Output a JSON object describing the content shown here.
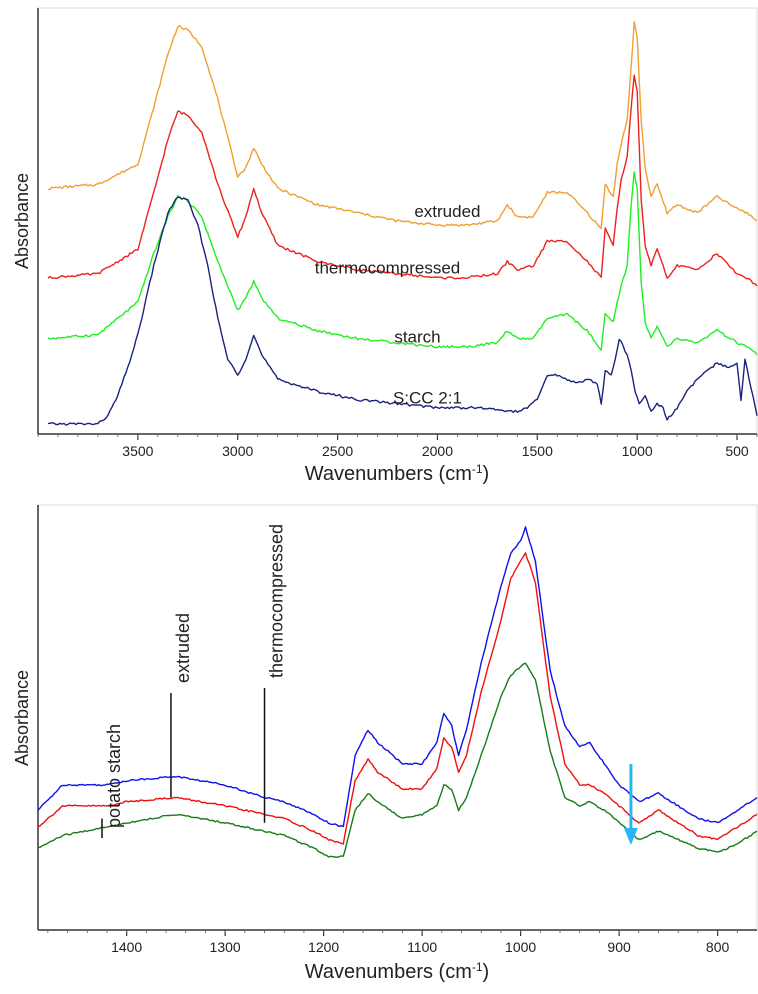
{
  "chart_data": [
    {
      "type": "line",
      "xlabel": "Wavenumbers (cm",
      "xlabel_sup": "-1",
      "xlabel_end": ")",
      "ylabel": "Absorbance",
      "xlim": [
        4000,
        400
      ],
      "x_reversed": true,
      "xticks": [
        3500,
        3000,
        2500,
        2000,
        1500,
        1000,
        500
      ],
      "grid": false,
      "series": [
        {
          "name": "extruded",
          "color": "#f0a030",
          "x": [
            3950,
            3700,
            3500,
            3420,
            3350,
            3300,
            3250,
            3180,
            3100,
            3000,
            2960,
            2920,
            2880,
            2800,
            2600,
            2400,
            2200,
            2000,
            1850,
            1700,
            1650,
            1600,
            1520,
            1450,
            1350,
            1250,
            1180,
            1160,
            1120,
            1100,
            1080,
            1050,
            1030,
            1015,
            1000,
            980,
            960,
            930,
            900,
            850,
            800,
            700,
            600,
            500,
            450,
            400
          ],
          "y": [
            0.59,
            0.6,
            0.65,
            0.79,
            0.92,
            0.99,
            0.98,
            0.94,
            0.81,
            0.62,
            0.64,
            0.69,
            0.65,
            0.59,
            0.55,
            0.53,
            0.51,
            0.5,
            0.5,
            0.51,
            0.55,
            0.52,
            0.52,
            0.58,
            0.58,
            0.53,
            0.49,
            0.6,
            0.57,
            0.65,
            0.7,
            0.76,
            0.89,
            1.0,
            0.96,
            0.76,
            0.64,
            0.57,
            0.6,
            0.53,
            0.55,
            0.53,
            0.57,
            0.54,
            0.53,
            0.51
          ]
        },
        {
          "name": "thermocompressed",
          "color": "#ee2020",
          "x": [
            3950,
            3700,
            3500,
            3420,
            3350,
            3300,
            3250,
            3180,
            3100,
            3000,
            2960,
            2920,
            2880,
            2800,
            2600,
            2400,
            2200,
            2000,
            1850,
            1700,
            1650,
            1600,
            1520,
            1450,
            1350,
            1250,
            1180,
            1160,
            1120,
            1100,
            1080,
            1050,
            1030,
            1015,
            1000,
            980,
            960,
            930,
            900,
            850,
            800,
            700,
            600,
            500,
            450,
            400
          ],
          "y": [
            0.37,
            0.38,
            0.44,
            0.58,
            0.71,
            0.78,
            0.77,
            0.73,
            0.6,
            0.47,
            0.52,
            0.59,
            0.53,
            0.45,
            0.41,
            0.39,
            0.38,
            0.37,
            0.37,
            0.38,
            0.41,
            0.39,
            0.4,
            0.46,
            0.46,
            0.41,
            0.37,
            0.49,
            0.45,
            0.54,
            0.61,
            0.67,
            0.79,
            0.87,
            0.83,
            0.56,
            0.45,
            0.4,
            0.44,
            0.37,
            0.4,
            0.39,
            0.43,
            0.38,
            0.37,
            0.35
          ]
        },
        {
          "name": "starch",
          "color": "#22ee22",
          "x": [
            3950,
            3700,
            3500,
            3420,
            3350,
            3300,
            3250,
            3180,
            3100,
            3000,
            2960,
            2920,
            2880,
            2800,
            2600,
            2400,
            2200,
            2000,
            1850,
            1700,
            1650,
            1600,
            1520,
            1450,
            1350,
            1250,
            1180,
            1160,
            1120,
            1100,
            1080,
            1050,
            1030,
            1015,
            1000,
            980,
            960,
            930,
            900,
            850,
            800,
            700,
            600,
            500,
            450,
            400
          ],
          "y": [
            0.22,
            0.23,
            0.31,
            0.43,
            0.52,
            0.57,
            0.56,
            0.52,
            0.41,
            0.29,
            0.32,
            0.36,
            0.32,
            0.27,
            0.24,
            0.22,
            0.21,
            0.2,
            0.2,
            0.21,
            0.24,
            0.22,
            0.22,
            0.27,
            0.28,
            0.24,
            0.19,
            0.28,
            0.26,
            0.31,
            0.35,
            0.4,
            0.55,
            0.63,
            0.59,
            0.36,
            0.26,
            0.22,
            0.25,
            0.2,
            0.22,
            0.21,
            0.24,
            0.21,
            0.2,
            0.18
          ]
        },
        {
          "name": "S:CC 2:1",
          "color": "#1a237e",
          "x": [
            3950,
            3700,
            3650,
            3600,
            3550,
            3500,
            3420,
            3350,
            3300,
            3250,
            3200,
            3150,
            3100,
            3050,
            3000,
            2960,
            2920,
            2880,
            2800,
            2600,
            2400,
            2200,
            2000,
            1800,
            1600,
            1550,
            1500,
            1450,
            1400,
            1350,
            1300,
            1250,
            1200,
            1180,
            1160,
            1130,
            1110,
            1090,
            1070,
            1050,
            1030,
            1010,
            990,
            960,
            930,
            900,
            870,
            850,
            800,
            750,
            700,
            650,
            600,
            550,
            500,
            480,
            460,
            430,
            400
          ],
          "y": [
            0.01,
            0.01,
            0.03,
            0.08,
            0.15,
            0.23,
            0.4,
            0.53,
            0.57,
            0.56,
            0.5,
            0.4,
            0.27,
            0.17,
            0.13,
            0.17,
            0.23,
            0.18,
            0.12,
            0.09,
            0.07,
            0.06,
            0.05,
            0.05,
            0.04,
            0.05,
            0.07,
            0.13,
            0.13,
            0.12,
            0.11,
            0.12,
            0.11,
            0.06,
            0.14,
            0.13,
            0.17,
            0.22,
            0.2,
            0.18,
            0.14,
            0.09,
            0.06,
            0.08,
            0.04,
            0.06,
            0.05,
            0.02,
            0.05,
            0.09,
            0.12,
            0.14,
            0.16,
            0.15,
            0.16,
            0.07,
            0.17,
            0.1,
            0.03
          ]
        }
      ],
      "annotations": [
        {
          "text": "extruded",
          "x": 1950,
          "y": 0.52
        },
        {
          "text": "thermocompressed",
          "x": 2250,
          "y": 0.38
        },
        {
          "text": "starch",
          "x": 2100,
          "y": 0.21
        },
        {
          "text": "S:CC 2:1",
          "x": 2050,
          "y": 0.06
        }
      ]
    },
    {
      "type": "line",
      "xlabel": "Wavenumbers (cm",
      "xlabel_sup": "-1",
      "xlabel_end": ")",
      "ylabel": "Absorbance",
      "xlim": [
        1490,
        760
      ],
      "x_reversed": true,
      "xticks": [
        1400,
        1300,
        1200,
        1100,
        1000,
        900,
        800
      ],
      "grid": false,
      "series": [
        {
          "color": "#1010ee",
          "x": [
            1490,
            1465,
            1420,
            1400,
            1350,
            1300,
            1260,
            1240,
            1210,
            1195,
            1180,
            1168,
            1155,
            1145,
            1120,
            1100,
            1085,
            1078,
            1070,
            1063,
            1055,
            1040,
            1020,
            1010,
            1000,
            995,
            985,
            970,
            955,
            940,
            930,
            915,
            900,
            880,
            860,
            840,
            820,
            800,
            780,
            760
          ],
          "y": [
            0.27,
            0.33,
            0.33,
            0.34,
            0.35,
            0.33,
            0.3,
            0.29,
            0.26,
            0.24,
            0.23,
            0.4,
            0.46,
            0.43,
            0.38,
            0.38,
            0.43,
            0.5,
            0.47,
            0.4,
            0.46,
            0.62,
            0.8,
            0.88,
            0.91,
            0.94,
            0.86,
            0.6,
            0.47,
            0.42,
            0.43,
            0.38,
            0.33,
            0.29,
            0.31,
            0.28,
            0.25,
            0.24,
            0.27,
            0.3
          ]
        },
        {
          "color": "#ee1010",
          "x": [
            1490,
            1465,
            1420,
            1400,
            1350,
            1300,
            1260,
            1240,
            1210,
            1195,
            1180,
            1168,
            1155,
            1145,
            1120,
            1100,
            1085,
            1078,
            1070,
            1063,
            1055,
            1040,
            1020,
            1010,
            1000,
            995,
            985,
            970,
            955,
            940,
            930,
            915,
            900,
            880,
            860,
            840,
            820,
            800,
            780,
            760
          ],
          "y": [
            0.23,
            0.28,
            0.28,
            0.29,
            0.3,
            0.28,
            0.26,
            0.25,
            0.22,
            0.2,
            0.19,
            0.34,
            0.39,
            0.36,
            0.32,
            0.32,
            0.37,
            0.44,
            0.42,
            0.36,
            0.4,
            0.55,
            0.72,
            0.82,
            0.86,
            0.88,
            0.81,
            0.54,
            0.38,
            0.33,
            0.33,
            0.31,
            0.28,
            0.24,
            0.27,
            0.24,
            0.21,
            0.2,
            0.23,
            0.26
          ]
        },
        {
          "color": "#1a7a1a",
          "x": [
            1490,
            1465,
            1420,
            1400,
            1350,
            1300,
            1260,
            1240,
            1210,
            1195,
            1180,
            1168,
            1155,
            1145,
            1120,
            1100,
            1085,
            1078,
            1070,
            1063,
            1055,
            1040,
            1020,
            1010,
            1000,
            995,
            985,
            970,
            955,
            940,
            930,
            915,
            900,
            880,
            860,
            840,
            820,
            800,
            780,
            760
          ],
          "y": [
            0.18,
            0.21,
            0.23,
            0.24,
            0.26,
            0.24,
            0.22,
            0.21,
            0.18,
            0.16,
            0.16,
            0.27,
            0.31,
            0.29,
            0.25,
            0.26,
            0.28,
            0.33,
            0.32,
            0.27,
            0.3,
            0.4,
            0.54,
            0.59,
            0.61,
            0.62,
            0.58,
            0.41,
            0.3,
            0.28,
            0.29,
            0.27,
            0.24,
            0.2,
            0.22,
            0.2,
            0.18,
            0.17,
            0.19,
            0.22
          ]
        }
      ],
      "markers": [
        {
          "text": "potato starch",
          "x": 1425,
          "y": 0.25
        },
        {
          "text": "extruded",
          "x": 1355,
          "y": 0.3
        },
        {
          "text": "thermocompressed",
          "x": 1260,
          "y": 0.24
        }
      ],
      "arrow": {
        "x": 888,
        "color": "#29b6f6"
      }
    }
  ]
}
